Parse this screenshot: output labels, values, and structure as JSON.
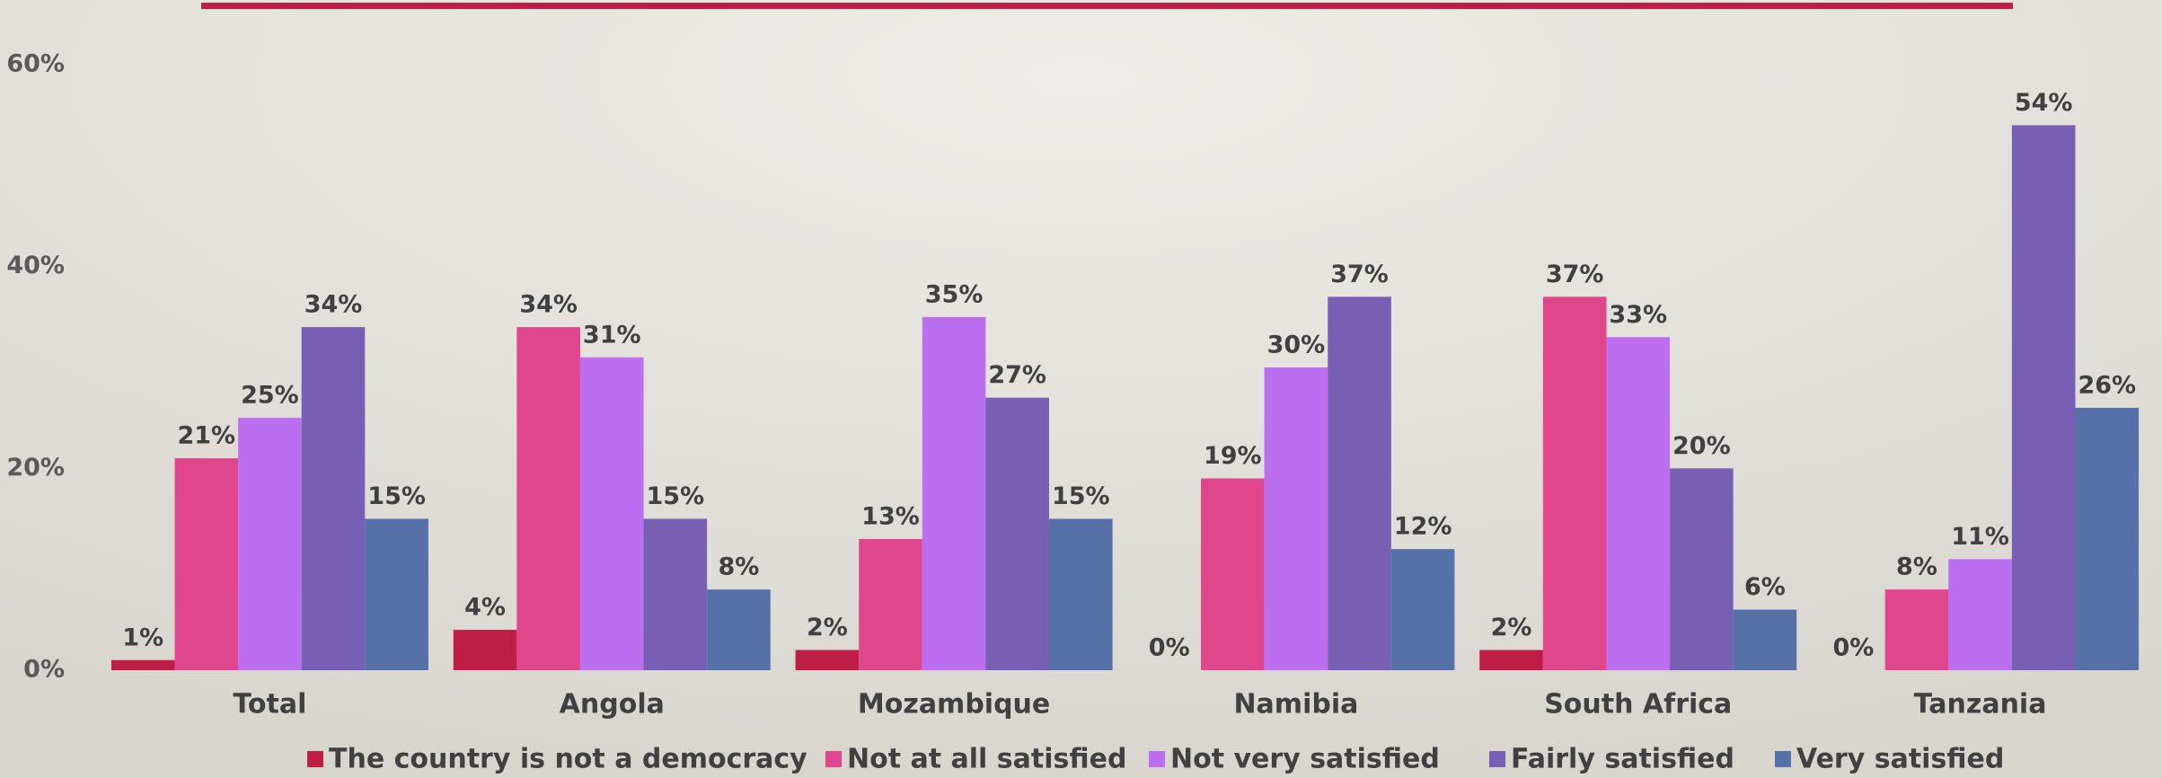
{
  "chart_data": {
    "type": "bar",
    "categories": [
      "Total",
      "Angola",
      "Mozambique",
      "Namibia",
      "South Africa",
      "Tanzania"
    ],
    "series": [
      {
        "name": "The country is not a democracy",
        "color": "#be1e45",
        "values": [
          1,
          4,
          2,
          0,
          2,
          0
        ],
        "value_labels": [
          "1%",
          "4%",
          "2%",
          "0%",
          "2%",
          "0%"
        ]
      },
      {
        "name": "Not at all satisfied",
        "color": "#e0468c",
        "values": [
          21,
          34,
          13,
          19,
          37,
          8
        ],
        "value_labels": [
          "21%",
          "34%",
          "13%",
          "19%",
          "37%",
          "8%"
        ]
      },
      {
        "name": "Not very satisfied",
        "color": "#bb6ff0",
        "values": [
          25,
          31,
          35,
          30,
          33,
          11
        ],
        "value_labels": [
          "25%",
          "31%",
          "35%",
          "30%",
          "33%",
          "11%"
        ]
      },
      {
        "name": "Fairly satisfied",
        "color": "#7760b3",
        "values": [
          34,
          15,
          27,
          37,
          20,
          54
        ],
        "value_labels": [
          "34%",
          "15%",
          "27%",
          "37%",
          "20%",
          "54%"
        ]
      },
      {
        "name": "Very satisfied",
        "color": "#5670a8",
        "values": [
          15,
          8,
          15,
          12,
          6,
          26
        ],
        "value_labels": [
          "15%",
          "8%",
          "15%",
          "12%",
          "6%",
          "26%"
        ]
      }
    ],
    "ylim": [
      0,
      60
    ],
    "yticks": [
      {
        "value": 0,
        "label": "0%"
      },
      {
        "value": 20,
        "label": "20%"
      },
      {
        "value": 40,
        "label": "40%"
      },
      {
        "value": 60,
        "label": "60%"
      }
    ],
    "grid": false,
    "legend": "bottom"
  }
}
